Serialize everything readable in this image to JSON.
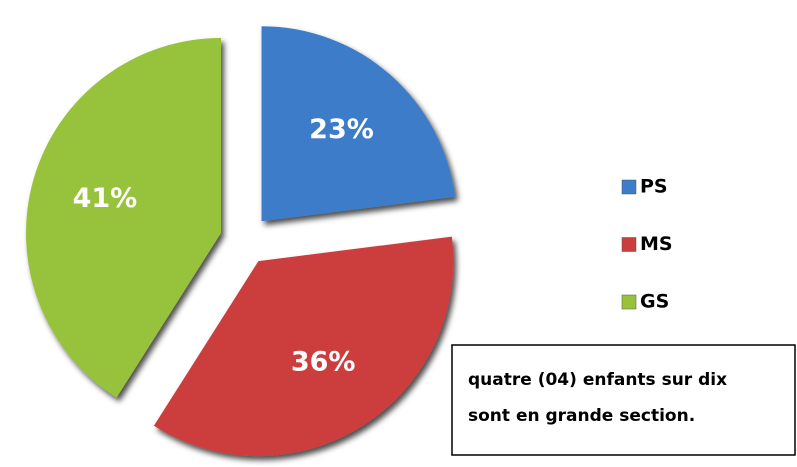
{
  "chart_data": {
    "type": "pie",
    "categories": [
      "PS",
      "MS",
      "GS"
    ],
    "values": [
      23,
      36,
      41
    ],
    "value_labels": [
      "23%",
      "36%",
      "41%"
    ],
    "colors": [
      "#3d7cc9",
      "#cc3d3d",
      "#97c23a"
    ],
    "legend": "right",
    "annotation": [
      "quatre (04) enfants sur dix",
      "sont en grande section."
    ]
  }
}
